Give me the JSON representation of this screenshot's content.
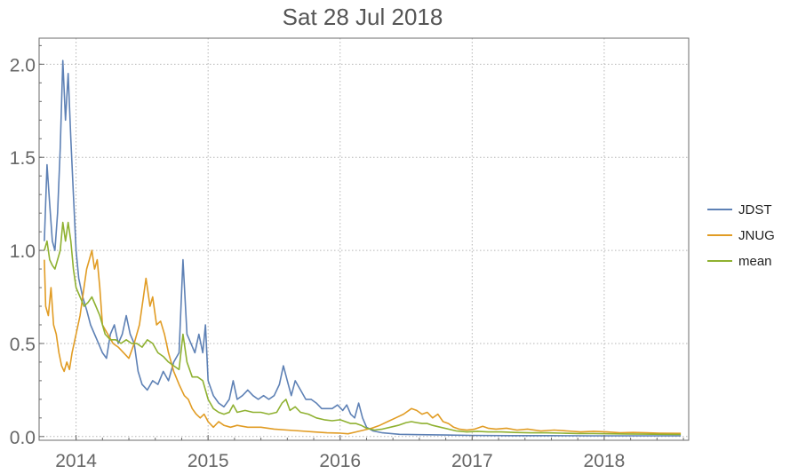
{
  "chart_data": {
    "type": "line",
    "title": "Sat 28 Jul 2018",
    "xlabel": "",
    "ylabel": "",
    "xlim": [
      2013.72,
      2018.64
    ],
    "ylim": [
      -0.02,
      2.14
    ],
    "x_ticks": [
      {
        "value": 2014,
        "label": "2014"
      },
      {
        "value": 2015,
        "label": "2015"
      },
      {
        "value": 2016,
        "label": "2016"
      },
      {
        "value": 2017,
        "label": "2017"
      },
      {
        "value": 2018,
        "label": "2018"
      }
    ],
    "y_ticks": [
      {
        "value": 0,
        "label": "0.0"
      },
      {
        "value": 0.5,
        "label": "0.5"
      },
      {
        "value": 1.0,
        "label": "1.0"
      },
      {
        "value": 1.5,
        "label": "1.5"
      },
      {
        "value": 2.0,
        "label": "2.0"
      }
    ],
    "grid": true,
    "legend_position": "right",
    "series": [
      {
        "name": "JDST",
        "color": "#5e81b5",
        "points": [
          [
            2013.76,
            1.05
          ],
          [
            2013.78,
            1.46
          ],
          [
            2013.8,
            1.25
          ],
          [
            2013.82,
            1.05
          ],
          [
            2013.84,
            1.0
          ],
          [
            2013.86,
            1.2
          ],
          [
            2013.88,
            1.55
          ],
          [
            2013.9,
            2.02
          ],
          [
            2013.92,
            1.7
          ],
          [
            2013.94,
            1.95
          ],
          [
            2013.96,
            1.6
          ],
          [
            2013.98,
            1.3
          ],
          [
            2014.0,
            1.0
          ],
          [
            2014.02,
            0.85
          ],
          [
            2014.05,
            0.75
          ],
          [
            2014.08,
            0.68
          ],
          [
            2014.11,
            0.6
          ],
          [
            2014.14,
            0.55
          ],
          [
            2014.17,
            0.5
          ],
          [
            2014.2,
            0.45
          ],
          [
            2014.23,
            0.42
          ],
          [
            2014.26,
            0.55
          ],
          [
            2014.29,
            0.6
          ],
          [
            2014.32,
            0.5
          ],
          [
            2014.35,
            0.55
          ],
          [
            2014.38,
            0.65
          ],
          [
            2014.41,
            0.55
          ],
          [
            2014.44,
            0.5
          ],
          [
            2014.47,
            0.35
          ],
          [
            2014.5,
            0.28
          ],
          [
            2014.54,
            0.25
          ],
          [
            2014.58,
            0.3
          ],
          [
            2014.62,
            0.28
          ],
          [
            2014.66,
            0.35
          ],
          [
            2014.7,
            0.3
          ],
          [
            2014.74,
            0.4
          ],
          [
            2014.78,
            0.45
          ],
          [
            2014.81,
            0.95
          ],
          [
            2014.84,
            0.55
          ],
          [
            2014.87,
            0.5
          ],
          [
            2014.9,
            0.45
          ],
          [
            2014.93,
            0.55
          ],
          [
            2014.96,
            0.45
          ],
          [
            2014.98,
            0.6
          ],
          [
            2015.0,
            0.3
          ],
          [
            2015.04,
            0.22
          ],
          [
            2015.08,
            0.18
          ],
          [
            2015.12,
            0.16
          ],
          [
            2015.16,
            0.2
          ],
          [
            2015.19,
            0.3
          ],
          [
            2015.22,
            0.2
          ],
          [
            2015.26,
            0.22
          ],
          [
            2015.3,
            0.25
          ],
          [
            2015.34,
            0.22
          ],
          [
            2015.38,
            0.2
          ],
          [
            2015.42,
            0.22
          ],
          [
            2015.46,
            0.2
          ],
          [
            2015.5,
            0.22
          ],
          [
            2015.54,
            0.28
          ],
          [
            2015.57,
            0.38
          ],
          [
            2015.6,
            0.3
          ],
          [
            2015.63,
            0.22
          ],
          [
            2015.66,
            0.3
          ],
          [
            2015.7,
            0.25
          ],
          [
            2015.74,
            0.2
          ],
          [
            2015.78,
            0.2
          ],
          [
            2015.82,
            0.18
          ],
          [
            2015.86,
            0.15
          ],
          [
            2015.9,
            0.15
          ],
          [
            2015.94,
            0.15
          ],
          [
            2015.98,
            0.17
          ],
          [
            2016.02,
            0.14
          ],
          [
            2016.05,
            0.17
          ],
          [
            2016.08,
            0.12
          ],
          [
            2016.11,
            0.1
          ],
          [
            2016.14,
            0.18
          ],
          [
            2016.17,
            0.1
          ],
          [
            2016.2,
            0.05
          ],
          [
            2016.25,
            0.03
          ],
          [
            2016.32,
            0.02
          ],
          [
            2016.45,
            0.012
          ],
          [
            2016.6,
            0.01
          ],
          [
            2016.8,
            0.008
          ],
          [
            2017.0,
            0.006
          ],
          [
            2017.3,
            0.005
          ],
          [
            2017.6,
            0.005
          ],
          [
            2017.9,
            0.004
          ],
          [
            2018.2,
            0.004
          ],
          [
            2018.58,
            0.004
          ]
        ]
      },
      {
        "name": "JNUG",
        "color": "#e19c24",
        "points": [
          [
            2013.76,
            0.95
          ],
          [
            2013.77,
            0.7
          ],
          [
            2013.79,
            0.65
          ],
          [
            2013.81,
            0.8
          ],
          [
            2013.83,
            0.6
          ],
          [
            2013.85,
            0.55
          ],
          [
            2013.87,
            0.45
          ],
          [
            2013.89,
            0.38
          ],
          [
            2013.91,
            0.35
          ],
          [
            2013.93,
            0.4
          ],
          [
            2013.95,
            0.36
          ],
          [
            2013.97,
            0.45
          ],
          [
            2014.0,
            0.55
          ],
          [
            2014.03,
            0.65
          ],
          [
            2014.06,
            0.8
          ],
          [
            2014.08,
            0.9
          ],
          [
            2014.1,
            0.95
          ],
          [
            2014.12,
            1.0
          ],
          [
            2014.14,
            0.9
          ],
          [
            2014.16,
            0.95
          ],
          [
            2014.18,
            0.8
          ],
          [
            2014.2,
            0.6
          ],
          [
            2014.24,
            0.55
          ],
          [
            2014.28,
            0.5
          ],
          [
            2014.32,
            0.48
          ],
          [
            2014.36,
            0.45
          ],
          [
            2014.4,
            0.42
          ],
          [
            2014.44,
            0.5
          ],
          [
            2014.48,
            0.6
          ],
          [
            2014.51,
            0.75
          ],
          [
            2014.53,
            0.85
          ],
          [
            2014.56,
            0.7
          ],
          [
            2014.58,
            0.75
          ],
          [
            2014.61,
            0.6
          ],
          [
            2014.64,
            0.62
          ],
          [
            2014.67,
            0.55
          ],
          [
            2014.7,
            0.45
          ],
          [
            2014.74,
            0.35
          ],
          [
            2014.78,
            0.28
          ],
          [
            2014.82,
            0.22
          ],
          [
            2014.85,
            0.2
          ],
          [
            2014.88,
            0.15
          ],
          [
            2014.91,
            0.12
          ],
          [
            2014.94,
            0.1
          ],
          [
            2014.97,
            0.12
          ],
          [
            2015.0,
            0.08
          ],
          [
            2015.04,
            0.05
          ],
          [
            2015.08,
            0.08
          ],
          [
            2015.12,
            0.06
          ],
          [
            2015.17,
            0.05
          ],
          [
            2015.22,
            0.06
          ],
          [
            2015.3,
            0.05
          ],
          [
            2015.4,
            0.05
          ],
          [
            2015.5,
            0.04
          ],
          [
            2015.6,
            0.035
          ],
          [
            2015.7,
            0.03
          ],
          [
            2015.8,
            0.025
          ],
          [
            2015.9,
            0.02
          ],
          [
            2016.0,
            0.018
          ],
          [
            2016.06,
            0.015
          ],
          [
            2016.12,
            0.025
          ],
          [
            2016.18,
            0.035
          ],
          [
            2016.24,
            0.045
          ],
          [
            2016.3,
            0.06
          ],
          [
            2016.36,
            0.08
          ],
          [
            2016.42,
            0.1
          ],
          [
            2016.48,
            0.12
          ],
          [
            2016.54,
            0.15
          ],
          [
            2016.58,
            0.14
          ],
          [
            2016.62,
            0.12
          ],
          [
            2016.66,
            0.13
          ],
          [
            2016.7,
            0.1
          ],
          [
            2016.74,
            0.12
          ],
          [
            2016.78,
            0.08
          ],
          [
            2016.82,
            0.07
          ],
          [
            2016.86,
            0.05
          ],
          [
            2016.9,
            0.04
          ],
          [
            2016.96,
            0.035
          ],
          [
            2017.02,
            0.04
          ],
          [
            2017.08,
            0.055
          ],
          [
            2017.12,
            0.045
          ],
          [
            2017.18,
            0.04
          ],
          [
            2017.26,
            0.045
          ],
          [
            2017.34,
            0.035
          ],
          [
            2017.42,
            0.04
          ],
          [
            2017.52,
            0.03
          ],
          [
            2017.62,
            0.035
          ],
          [
            2017.72,
            0.03
          ],
          [
            2017.82,
            0.025
          ],
          [
            2017.92,
            0.028
          ],
          [
            2018.02,
            0.025
          ],
          [
            2018.12,
            0.02
          ],
          [
            2018.22,
            0.022
          ],
          [
            2018.32,
            0.02
          ],
          [
            2018.42,
            0.018
          ],
          [
            2018.58,
            0.017
          ]
        ]
      },
      {
        "name": "mean",
        "color": "#8fb131",
        "points": [
          [
            2013.76,
            1.0
          ],
          [
            2013.78,
            1.05
          ],
          [
            2013.8,
            0.95
          ],
          [
            2013.82,
            0.92
          ],
          [
            2013.84,
            0.9
          ],
          [
            2013.86,
            0.95
          ],
          [
            2013.88,
            1.0
          ],
          [
            2013.9,
            1.15
          ],
          [
            2013.92,
            1.05
          ],
          [
            2013.94,
            1.15
          ],
          [
            2013.96,
            1.05
          ],
          [
            2013.98,
            0.9
          ],
          [
            2014.0,
            0.8
          ],
          [
            2014.03,
            0.75
          ],
          [
            2014.06,
            0.7
          ],
          [
            2014.09,
            0.72
          ],
          [
            2014.12,
            0.75
          ],
          [
            2014.15,
            0.7
          ],
          [
            2014.18,
            0.65
          ],
          [
            2014.22,
            0.55
          ],
          [
            2014.26,
            0.52
          ],
          [
            2014.3,
            0.52
          ],
          [
            2014.34,
            0.5
          ],
          [
            2014.38,
            0.52
          ],
          [
            2014.42,
            0.5
          ],
          [
            2014.46,
            0.5
          ],
          [
            2014.5,
            0.48
          ],
          [
            2014.54,
            0.52
          ],
          [
            2014.58,
            0.5
          ],
          [
            2014.62,
            0.45
          ],
          [
            2014.66,
            0.43
          ],
          [
            2014.7,
            0.4
          ],
          [
            2014.74,
            0.38
          ],
          [
            2014.78,
            0.36
          ],
          [
            2014.81,
            0.55
          ],
          [
            2014.84,
            0.4
          ],
          [
            2014.88,
            0.32
          ],
          [
            2014.92,
            0.32
          ],
          [
            2014.96,
            0.3
          ],
          [
            2015.0,
            0.2
          ],
          [
            2015.04,
            0.15
          ],
          [
            2015.08,
            0.13
          ],
          [
            2015.12,
            0.12
          ],
          [
            2015.16,
            0.13
          ],
          [
            2015.19,
            0.17
          ],
          [
            2015.22,
            0.13
          ],
          [
            2015.28,
            0.14
          ],
          [
            2015.34,
            0.13
          ],
          [
            2015.4,
            0.13
          ],
          [
            2015.46,
            0.12
          ],
          [
            2015.52,
            0.13
          ],
          [
            2015.56,
            0.18
          ],
          [
            2015.59,
            0.2
          ],
          [
            2015.62,
            0.14
          ],
          [
            2015.66,
            0.16
          ],
          [
            2015.7,
            0.13
          ],
          [
            2015.76,
            0.12
          ],
          [
            2015.82,
            0.1
          ],
          [
            2015.88,
            0.09
          ],
          [
            2015.94,
            0.085
          ],
          [
            2016.0,
            0.09
          ],
          [
            2016.04,
            0.08
          ],
          [
            2016.08,
            0.07
          ],
          [
            2016.12,
            0.07
          ],
          [
            2016.16,
            0.06
          ],
          [
            2016.2,
            0.045
          ],
          [
            2016.26,
            0.035
          ],
          [
            2016.32,
            0.04
          ],
          [
            2016.38,
            0.05
          ],
          [
            2016.44,
            0.06
          ],
          [
            2016.5,
            0.075
          ],
          [
            2016.54,
            0.08
          ],
          [
            2016.58,
            0.075
          ],
          [
            2016.62,
            0.07
          ],
          [
            2016.66,
            0.07
          ],
          [
            2016.7,
            0.06
          ],
          [
            2016.76,
            0.05
          ],
          [
            2016.82,
            0.04
          ],
          [
            2016.88,
            0.03
          ],
          [
            2016.96,
            0.025
          ],
          [
            2017.04,
            0.028
          ],
          [
            2017.12,
            0.025
          ],
          [
            2017.22,
            0.025
          ],
          [
            2017.32,
            0.022
          ],
          [
            2017.44,
            0.02
          ],
          [
            2017.56,
            0.02
          ],
          [
            2017.68,
            0.018
          ],
          [
            2017.8,
            0.016
          ],
          [
            2017.92,
            0.016
          ],
          [
            2018.04,
            0.015
          ],
          [
            2018.16,
            0.014
          ],
          [
            2018.3,
            0.013
          ],
          [
            2018.44,
            0.012
          ],
          [
            2018.58,
            0.011
          ]
        ]
      }
    ]
  }
}
